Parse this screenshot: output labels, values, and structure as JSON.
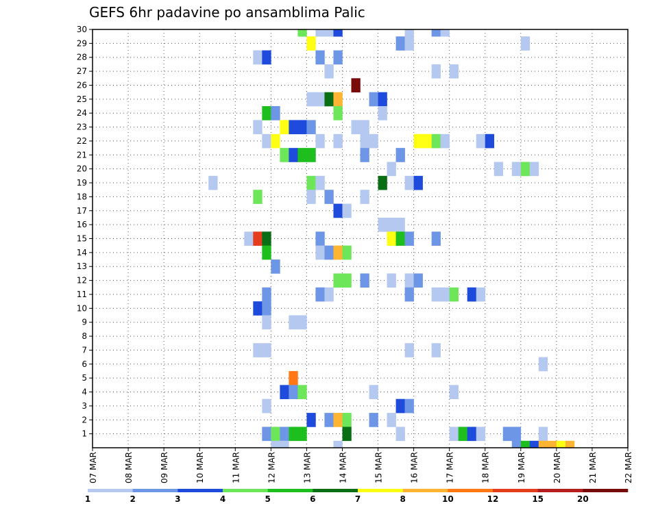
{
  "chart_data": {
    "type": "heatmap",
    "title": "GEFS 6hr padavine po ansamblima Palic",
    "xlabel": "",
    "ylabel": "",
    "x_tick_labels": [
      "07 MAR",
      "08 MAR",
      "09 MAR",
      "10 MAR",
      "11 MAR",
      "12 MAR",
      "13 MAR",
      "14 MAR",
      "15 MAR",
      "16 MAR",
      "17 MAR",
      "18 MAR",
      "19 MAR",
      "20 MAR",
      "21 MAR",
      "22 MAR"
    ],
    "y_tick_labels": [
      "1",
      "2",
      "3",
      "4",
      "5",
      "6",
      "7",
      "8",
      "9",
      "10",
      "11",
      "12",
      "13",
      "14",
      "15",
      "16",
      "17",
      "18",
      "19",
      "20",
      "21",
      "22",
      "23",
      "24",
      "25",
      "26",
      "27",
      "28",
      "29",
      "30"
    ],
    "xlim_days": [
      0,
      15
    ],
    "time_step_hours": 6,
    "ylim": [
      0,
      30
    ],
    "grid": true,
    "colorbar": {
      "labels": [
        "1",
        "2",
        "3",
        "4",
        "5",
        "6",
        "7",
        "8",
        "10",
        "12",
        "15",
        "20"
      ],
      "colors": [
        "#b4c8f0",
        "#6e96e6",
        "#1e4bdc",
        "#6ee65a",
        "#1ebe1e",
        "#0a6e14",
        "#ffff14",
        "#ffb432",
        "#ff7814",
        "#e63c1e",
        "#b41e1e",
        "#780a0a"
      ]
    },
    "cells_note": "each cell: [x_step (6h steps since 07 MAR 00z), member_row (1-30), color_class (1-12)]",
    "cells": [
      [
        23,
        30,
        4
      ],
      [
        25,
        30,
        1
      ],
      [
        26,
        30,
        1
      ],
      [
        27,
        30,
        3
      ],
      [
        35,
        30,
        1
      ],
      [
        38,
        30,
        2
      ],
      [
        39,
        30,
        1
      ],
      [
        24,
        29,
        7
      ],
      [
        34,
        29,
        2
      ],
      [
        35,
        29,
        1
      ],
      [
        48,
        29,
        1
      ],
      [
        18,
        28,
        1
      ],
      [
        19,
        28,
        3
      ],
      [
        25,
        28,
        2
      ],
      [
        27,
        28,
        2
      ],
      [
        26,
        27,
        1
      ],
      [
        38,
        27,
        1
      ],
      [
        40,
        27,
        1
      ],
      [
        29,
        26,
        12
      ],
      [
        24,
        25,
        1
      ],
      [
        25,
        25,
        1
      ],
      [
        26,
        25,
        6
      ],
      [
        27,
        25,
        8
      ],
      [
        31,
        25,
        2
      ],
      [
        32,
        25,
        3
      ],
      [
        19,
        24,
        5
      ],
      [
        20,
        24,
        2
      ],
      [
        27,
        24,
        4
      ],
      [
        32,
        24,
        1
      ],
      [
        18,
        23,
        1
      ],
      [
        21,
        23,
        7
      ],
      [
        22,
        23,
        3
      ],
      [
        23,
        23,
        3
      ],
      [
        24,
        23,
        2
      ],
      [
        29,
        23,
        1
      ],
      [
        30,
        23,
        1
      ],
      [
        19,
        22,
        1
      ],
      [
        20,
        22,
        7
      ],
      [
        25,
        22,
        1
      ],
      [
        27,
        22,
        1
      ],
      [
        30,
        22,
        1
      ],
      [
        31,
        22,
        1
      ],
      [
        36,
        22,
        7
      ],
      [
        37,
        22,
        7
      ],
      [
        38,
        22,
        4
      ],
      [
        39,
        22,
        1
      ],
      [
        43,
        22,
        1
      ],
      [
        44,
        22,
        3
      ],
      [
        21,
        21,
        4
      ],
      [
        22,
        21,
        3
      ],
      [
        23,
        21,
        5
      ],
      [
        24,
        21,
        5
      ],
      [
        30,
        21,
        2
      ],
      [
        34,
        21,
        2
      ],
      [
        33,
        20,
        1
      ],
      [
        45,
        20,
        1
      ],
      [
        47,
        20,
        1
      ],
      [
        48,
        20,
        4
      ],
      [
        49,
        20,
        1
      ],
      [
        13,
        19,
        1
      ],
      [
        24,
        19,
        4
      ],
      [
        25,
        19,
        1
      ],
      [
        32,
        19,
        6
      ],
      [
        35,
        19,
        1
      ],
      [
        36,
        19,
        3
      ],
      [
        18,
        18,
        4
      ],
      [
        24,
        18,
        1
      ],
      [
        26,
        18,
        2
      ],
      [
        30,
        18,
        1
      ],
      [
        27,
        17,
        3
      ],
      [
        28,
        17,
        1
      ],
      [
        32,
        16,
        1
      ],
      [
        33,
        16,
        1
      ],
      [
        34,
        16,
        1
      ],
      [
        17,
        15,
        1
      ],
      [
        18,
        15,
        10
      ],
      [
        19,
        15,
        6
      ],
      [
        25,
        15,
        2
      ],
      [
        33,
        15,
        7
      ],
      [
        34,
        15,
        5
      ],
      [
        35,
        15,
        2
      ],
      [
        38,
        15,
        2
      ],
      [
        19,
        14,
        5
      ],
      [
        25,
        14,
        1
      ],
      [
        26,
        14,
        2
      ],
      [
        27,
        14,
        8
      ],
      [
        28,
        14,
        4
      ],
      [
        20,
        13,
        2
      ],
      [
        27,
        12,
        4
      ],
      [
        28,
        12,
        4
      ],
      [
        30,
        12,
        2
      ],
      [
        33,
        12,
        1
      ],
      [
        35,
        12,
        1
      ],
      [
        36,
        12,
        2
      ],
      [
        19,
        11,
        2
      ],
      [
        25,
        11,
        2
      ],
      [
        26,
        11,
        1
      ],
      [
        35,
        11,
        2
      ],
      [
        38,
        11,
        1
      ],
      [
        39,
        11,
        1
      ],
      [
        40,
        11,
        4
      ],
      [
        42,
        11,
        3
      ],
      [
        43,
        11,
        1
      ],
      [
        18,
        10,
        3
      ],
      [
        19,
        10,
        2
      ],
      [
        19,
        9,
        1
      ],
      [
        22,
        9,
        1
      ],
      [
        23,
        9,
        1
      ],
      [
        18,
        7,
        1
      ],
      [
        19,
        7,
        1
      ],
      [
        35,
        7,
        1
      ],
      [
        38,
        7,
        1
      ],
      [
        50,
        6,
        1
      ],
      [
        22,
        5,
        9
      ],
      [
        21,
        4,
        3
      ],
      [
        22,
        4,
        2
      ],
      [
        23,
        4,
        4
      ],
      [
        31,
        4,
        1
      ],
      [
        40,
        4,
        1
      ],
      [
        19,
        3,
        1
      ],
      [
        34,
        3,
        3
      ],
      [
        35,
        3,
        2
      ],
      [
        24,
        2,
        3
      ],
      [
        26,
        2,
        2
      ],
      [
        27,
        2,
        8
      ],
      [
        28,
        2,
        4
      ],
      [
        31,
        2,
        2
      ],
      [
        33,
        2,
        1
      ],
      [
        19,
        1,
        2
      ],
      [
        20,
        1,
        4
      ],
      [
        21,
        1,
        2
      ],
      [
        22,
        1,
        5
      ],
      [
        23,
        1,
        5
      ],
      [
        28,
        1,
        6
      ],
      [
        34,
        1,
        1
      ],
      [
        40,
        1,
        1
      ],
      [
        41,
        1,
        5
      ],
      [
        42,
        1,
        3
      ],
      [
        43,
        1,
        1
      ],
      [
        46,
        1,
        2
      ],
      [
        47,
        1,
        2
      ],
      [
        50,
        1,
        1
      ],
      [
        20,
        0,
        1
      ],
      [
        21,
        0,
        1
      ],
      [
        27,
        0,
        1
      ],
      [
        47,
        0,
        2
      ],
      [
        48,
        0,
        5
      ],
      [
        49,
        0,
        3
      ],
      [
        50,
        0,
        8
      ],
      [
        51,
        0,
        8
      ],
      [
        52,
        0,
        7
      ],
      [
        53,
        0,
        8
      ]
    ]
  }
}
